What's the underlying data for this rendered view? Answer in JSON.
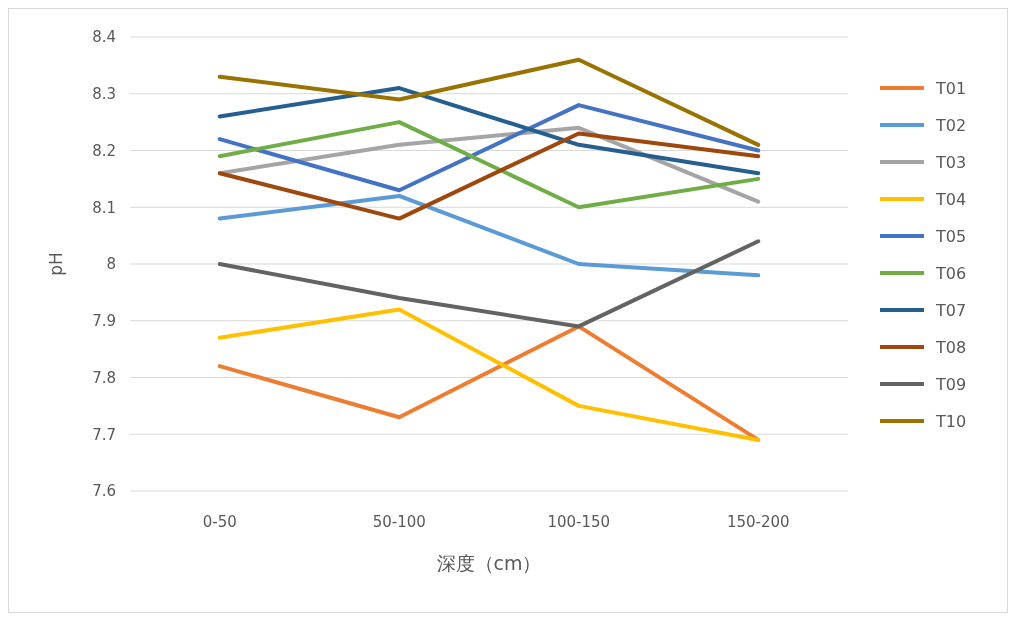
{
  "chart_data": {
    "type": "line",
    "xlabel": "深度（cm）",
    "ylabel": "pH",
    "categories": [
      "0-50",
      "50-100",
      "100-150",
      "150-200"
    ],
    "ylim": [
      7.6,
      8.4
    ],
    "yticks": [
      7.6,
      7.7,
      7.8,
      7.9,
      8,
      8.1,
      8.2,
      8.3,
      8.4
    ],
    "grid": "y",
    "legend": "right",
    "marker": "none",
    "line_style": "solid",
    "series": [
      {
        "name": "T01",
        "color": "#ed7d31",
        "values": [
          7.82,
          7.73,
          7.89,
          7.69
        ]
      },
      {
        "name": "T02",
        "color": "#5b9bd5",
        "values": [
          8.08,
          8.12,
          8.0,
          7.98
        ]
      },
      {
        "name": "T03",
        "color": "#a5a5a5",
        "values": [
          8.16,
          8.21,
          8.24,
          8.11
        ]
      },
      {
        "name": "T04",
        "color": "#ffc000",
        "values": [
          7.87,
          7.92,
          7.75,
          7.69
        ]
      },
      {
        "name": "T05",
        "color": "#4472c4",
        "values": [
          8.22,
          8.13,
          8.28,
          8.2
        ]
      },
      {
        "name": "T06",
        "color": "#70ad47",
        "values": [
          8.19,
          8.25,
          8.1,
          8.15
        ]
      },
      {
        "name": "T07",
        "color": "#255e91",
        "values": [
          8.26,
          8.31,
          8.21,
          8.16
        ]
      },
      {
        "name": "T08",
        "color": "#9e480e",
        "values": [
          8.16,
          8.08,
          8.23,
          8.19
        ]
      },
      {
        "name": "T09",
        "color": "#636363",
        "values": [
          8.0,
          7.94,
          7.89,
          8.04
        ]
      },
      {
        "name": "T10",
        "color": "#997300",
        "values": [
          8.33,
          8.29,
          8.36,
          8.21
        ]
      }
    ]
  }
}
